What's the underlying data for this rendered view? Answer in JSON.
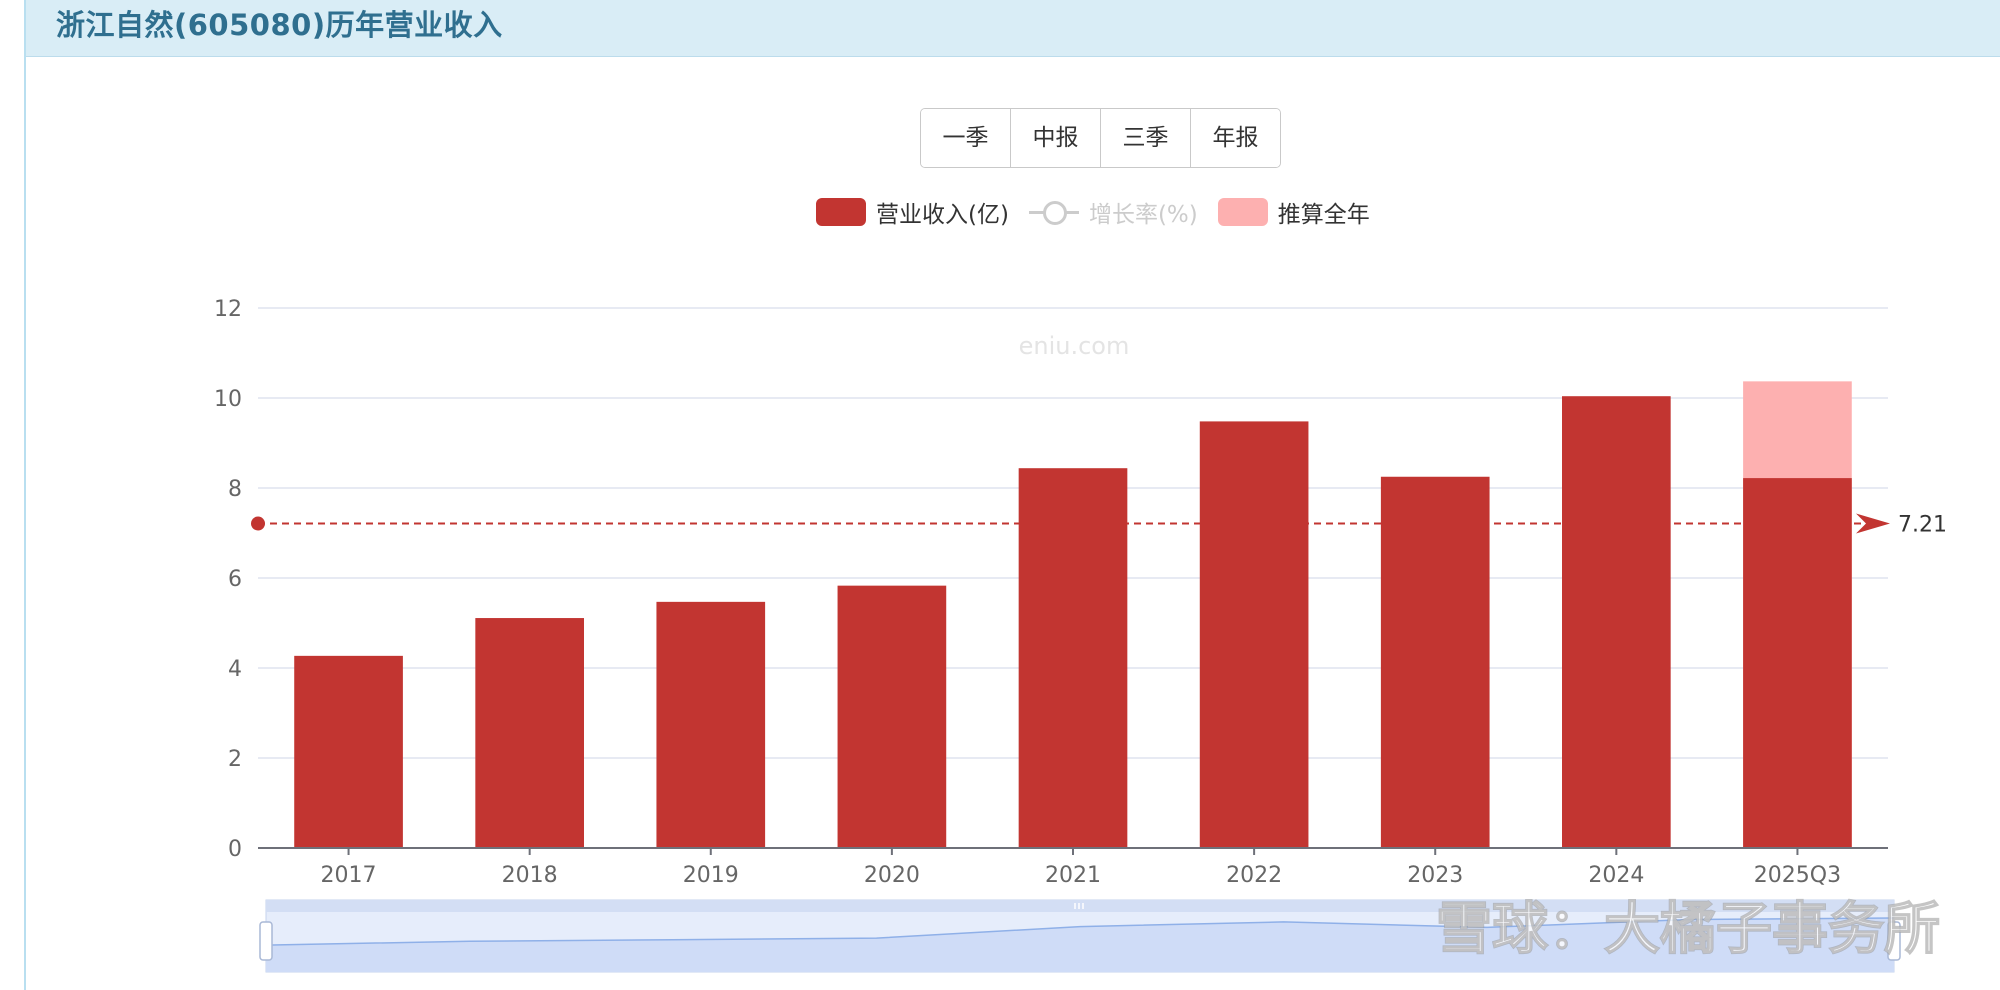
{
  "header": {
    "title": "浙江自然(605080)历年营业收入"
  },
  "period_buttons": [
    "一季",
    "中报",
    "三季",
    "年报"
  ],
  "legend": {
    "revenue": "营业收入(亿)",
    "growth": "增长率(%)",
    "estimate": "推算全年"
  },
  "watermark": "eniu.com",
  "corner_watermark": "雪球：大橘子事务所",
  "colors": {
    "revenue": "#c23531",
    "estimate": "#fdb0b0",
    "growth_inactive": "#cccccc",
    "header_bg": "#d9edf6",
    "title": "#2f6f8f"
  },
  "chart_data": {
    "type": "bar",
    "categories": [
      "2017",
      "2018",
      "2019",
      "2020",
      "2021",
      "2022",
      "2023",
      "2024",
      "2025Q3"
    ],
    "series": [
      {
        "name": "营业收入(亿)",
        "values": [
          4.27,
          5.11,
          5.47,
          5.83,
          8.44,
          9.48,
          8.25,
          10.04,
          8.22
        ]
      },
      {
        "name": "推算全年",
        "values": [
          null,
          null,
          null,
          null,
          null,
          null,
          null,
          null,
          10.37
        ]
      }
    ],
    "average_line": {
      "value": 7.21,
      "label": "7.21"
    },
    "ylim": [
      0,
      12
    ],
    "yticks": [
      0,
      2,
      4,
      6,
      8,
      10,
      12
    ],
    "grid": true,
    "legend_position": "top"
  }
}
